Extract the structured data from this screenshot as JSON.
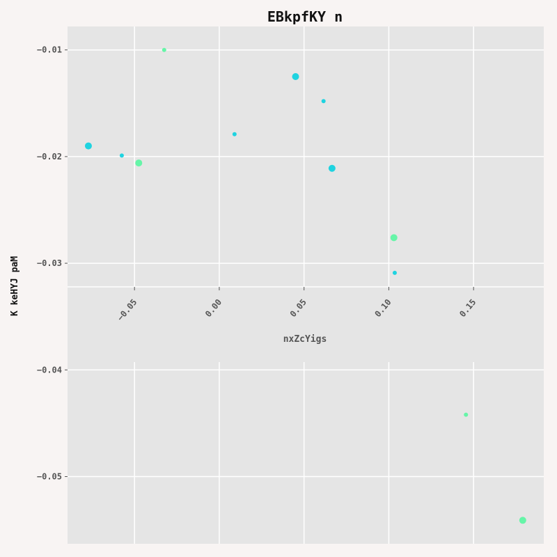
{
  "chart_data": {
    "type": "scatter",
    "title": "EBkpfKY  n",
    "xlabel": "nxZcYigs",
    "ylabel": "K keHYJ paM",
    "xlim": [
      -0.0895,
      0.1914
    ],
    "ylim": [
      -0.0563,
      -0.0078
    ],
    "x_ticks": [
      -0.05,
      0.0,
      0.05,
      0.1,
      0.15
    ],
    "x_tick_labels": [
      "−0.05",
      "0.00",
      "0.05",
      "0.10",
      "0.15"
    ],
    "y_ticks": [
      -0.01,
      -0.02,
      -0.03,
      -0.04,
      -0.05
    ],
    "y_tick_labels": [
      "−0.01",
      "−0.02",
      "−0.03",
      "−0.04",
      "−0.05"
    ],
    "grid": true,
    "colors": {
      "background": "#f8f4f3",
      "plot_background": "#e5e5e5",
      "grid": "#ffffff",
      "series_a": "#1fd3e0",
      "series_b": "#66f5a8"
    },
    "series": [
      {
        "color": "#1fd3e0",
        "points": [
          {
            "x": -0.0772,
            "y": -0.019,
            "size": "large"
          },
          {
            "x": -0.0575,
            "y": -0.0199,
            "size": "small"
          },
          {
            "x": 0.009,
            "y": -0.0179,
            "size": "small"
          },
          {
            "x": 0.045,
            "y": -0.0125,
            "size": "large"
          },
          {
            "x": 0.0615,
            "y": -0.0148,
            "size": "small"
          },
          {
            "x": 0.0665,
            "y": -0.0211,
            "size": "large"
          },
          {
            "x": 0.1035,
            "y": -0.0309,
            "size": "small"
          }
        ]
      },
      {
        "color": "#66f5a8",
        "points": [
          {
            "x": -0.0325,
            "y": -0.01,
            "size": "small"
          },
          {
            "x": -0.0475,
            "y": -0.0206,
            "size": "large"
          },
          {
            "x": 0.103,
            "y": -0.0276,
            "size": "large"
          },
          {
            "x": 0.1455,
            "y": -0.0442,
            "size": "small"
          },
          {
            "x": 0.179,
            "y": -0.0541,
            "size": "large"
          }
        ]
      }
    ]
  }
}
